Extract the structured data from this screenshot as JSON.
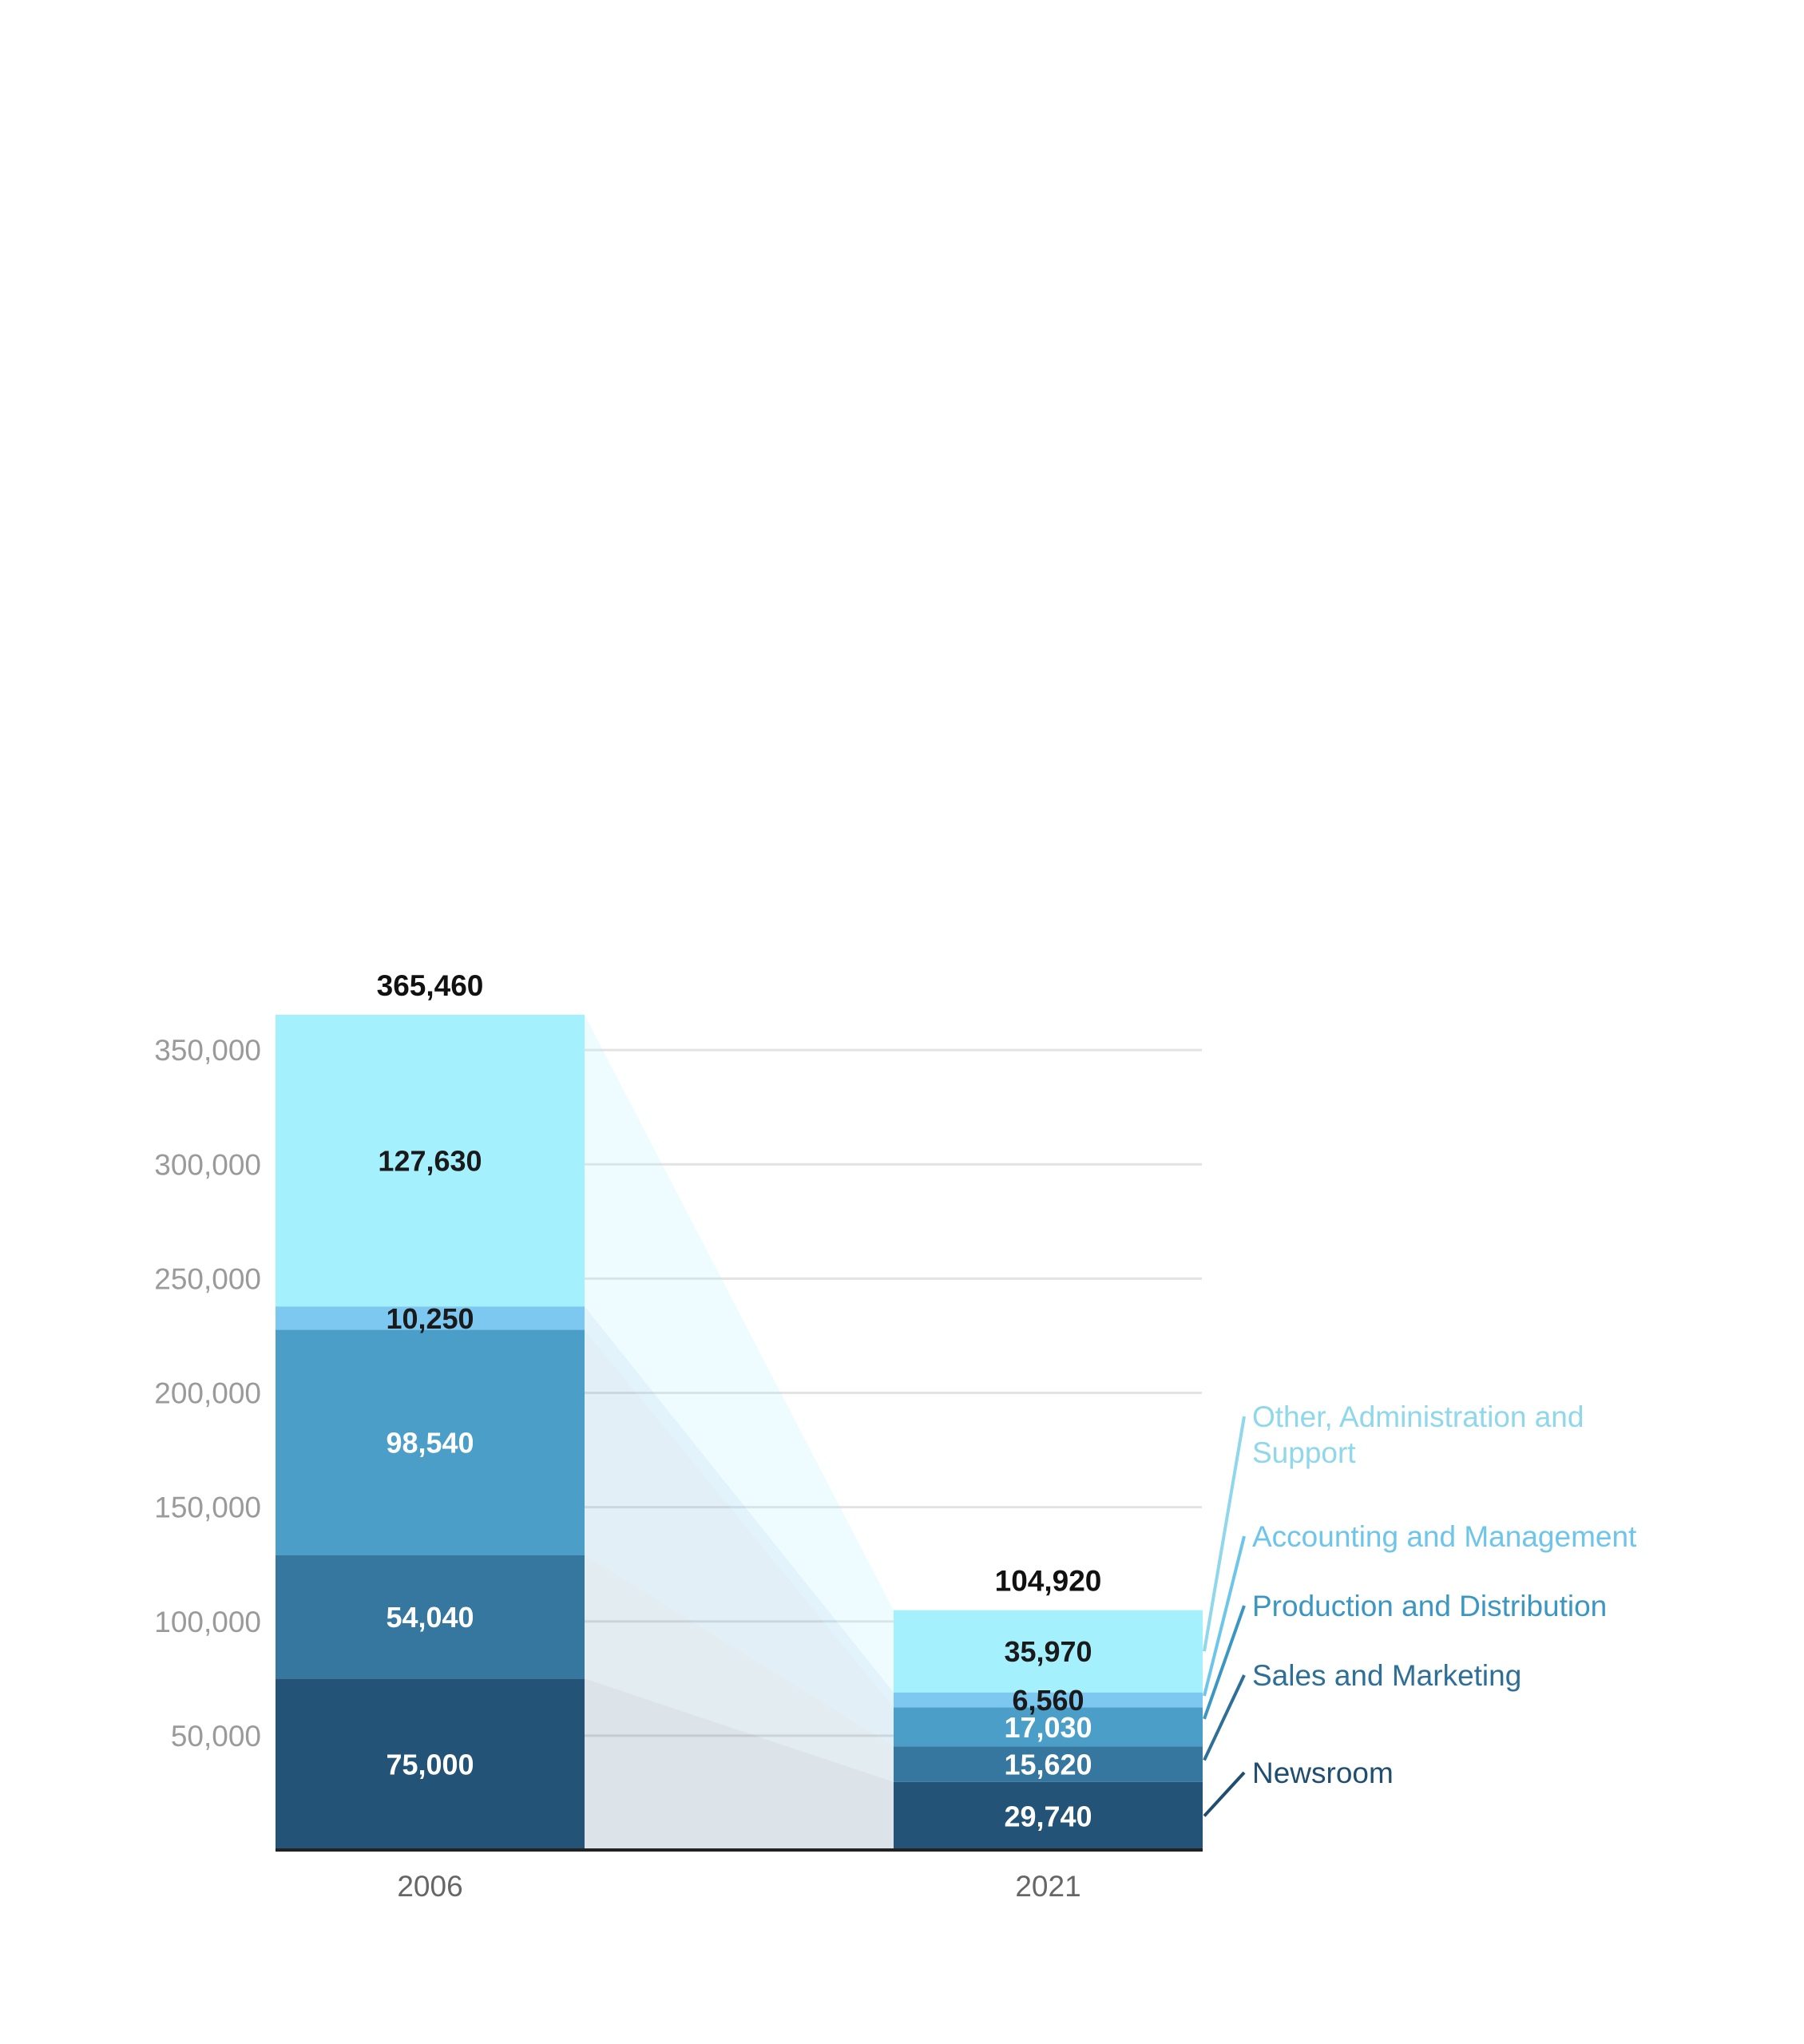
{
  "chart_data": {
    "type": "bar",
    "stacked": true,
    "title": "",
    "xlabel": "",
    "ylabel": "",
    "categories": [
      "2006",
      "2021"
    ],
    "ylim": [
      0,
      365460
    ],
    "yticks": [
      50000,
      100000,
      150000,
      200000,
      250000,
      300000,
      350000
    ],
    "ytick_labels": [
      "50,000",
      "100,000",
      "150,000",
      "200,000",
      "250,000",
      "300,000",
      "350,000"
    ],
    "grid": true,
    "legend_placement": "right",
    "series": [
      {
        "name": "Newsroom",
        "values": [
          75000,
          29740
        ],
        "value_labels": [
          "75,000",
          "29,740"
        ],
        "color": "#235478",
        "label_color": "#ffffff",
        "legend_color": "#1f4e70"
      },
      {
        "name": "Sales and Marketing",
        "values": [
          54040,
          15620
        ],
        "value_labels": [
          "54,040",
          "15,620"
        ],
        "color": "#35779f",
        "label_color": "#ffffff",
        "legend_color": "#2e6f98"
      },
      {
        "name": "Production and Distribution",
        "values": [
          98540,
          17030
        ],
        "value_labels": [
          "98,540",
          "17,030"
        ],
        "color": "#4a9ec8",
        "label_color": "#ffffff",
        "legend_color": "#3c96c2"
      },
      {
        "name": "Accounting and Management",
        "values": [
          10250,
          6560
        ],
        "value_labels": [
          "10,250",
          "6,560"
        ],
        "color": "#7cc8f1",
        "label_color": "#1a1a1a",
        "legend_color": "#6ec5ea"
      },
      {
        "name": "Other, Administration and Support",
        "legend_lines": [
          "Other, Administration and",
          "Support"
        ],
        "values": [
          127630,
          35970
        ],
        "value_labels": [
          "127,630",
          "35,970"
        ],
        "color": "#a5f0fd",
        "label_color": "#1a1a1a",
        "legend_color": "#8fd7ea"
      }
    ],
    "totals": [
      365460,
      104920
    ],
    "total_labels": [
      "365,460",
      "104,920"
    ]
  }
}
